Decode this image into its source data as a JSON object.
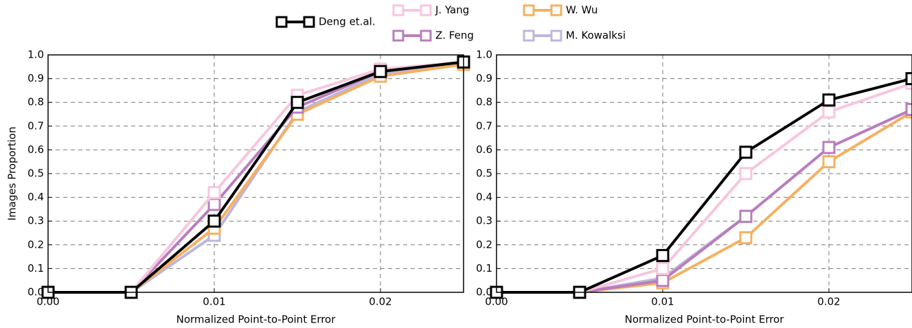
{
  "chart_data": [
    {
      "type": "line",
      "x": [
        0,
        0.005,
        0.01,
        0.015,
        0.02,
        0.025
      ],
      "xlim": [
        0,
        0.025
      ],
      "xticks": [
        {
          "value": 0,
          "label": "0.00"
        },
        0.01,
        0.02
      ],
      "ylim": [
        0,
        1
      ],
      "yticks": [
        {
          "value": 0,
          "label": "0.0"
        },
        0.1,
        0.2,
        0.3,
        0.4,
        0.5,
        0.6,
        0.7,
        0.8,
        0.9,
        {
          "value": 1,
          "label": "1.0"
        }
      ],
      "grid": true,
      "xlabel": "Normalized Point-to-Point Error",
      "ylabel": "Images Proportion",
      "series": [
        {
          "name": "Deng et.al.",
          "color": "#000000",
          "values": [
            0,
            0,
            0.3,
            0.8,
            0.93,
            0.97
          ]
        },
        {
          "name": "J. Yang",
          "color": "#f7c6df",
          "values": [
            0,
            0,
            0.42,
            0.83,
            0.94,
            0.97
          ]
        },
        {
          "name": "Z. Feng",
          "color": "#b87ebd",
          "values": [
            0,
            0,
            0.37,
            0.78,
            0.93,
            0.97
          ]
        },
        {
          "name": "W. Wu",
          "color": "#f5b060",
          "values": [
            0,
            0,
            0.27,
            0.75,
            0.91,
            0.96
          ]
        },
        {
          "name": "M. Kowalksi",
          "color": "#bdb6dc",
          "values": [
            0,
            0,
            0.24,
            0.76,
            0.92,
            0.96
          ]
        }
      ]
    },
    {
      "type": "line",
      "x": [
        0,
        0.005,
        0.01,
        0.015,
        0.02,
        0.025
      ],
      "xlim": [
        0,
        0.025
      ],
      "xticks": [
        {
          "value": 0,
          "label": "0.00"
        },
        0.01,
        0.02
      ],
      "ylim": [
        0,
        1
      ],
      "yticks": [
        {
          "value": 0,
          "label": "0.0"
        },
        0.1,
        0.2,
        0.3,
        0.4,
        0.5,
        0.6,
        0.7,
        0.8,
        0.9,
        {
          "value": 1,
          "label": "1.0"
        }
      ],
      "grid": true,
      "xlabel": "Normalized Point-to-Point Error",
      "series": [
        {
          "color": "#000000",
          "values": [
            0,
            0,
            0.155,
            0.59,
            0.81,
            0.9
          ]
        },
        {
          "color": "#f7c6df",
          "values": [
            0,
            0,
            0.1,
            0.5,
            0.76,
            0.88
          ]
        },
        {
          "color": "#b87ebd",
          "values": [
            0,
            0,
            0.05,
            0.32,
            0.61,
            0.77
          ]
        },
        {
          "color": "#f5b060",
          "values": [
            0,
            0,
            0.04,
            0.23,
            0.55,
            0.76
          ]
        },
        {
          "color": "#bdb6dc",
          "values": [
            0,
            0,
            0.06,
            0.32,
            0.61,
            0.77
          ]
        }
      ]
    }
  ]
}
